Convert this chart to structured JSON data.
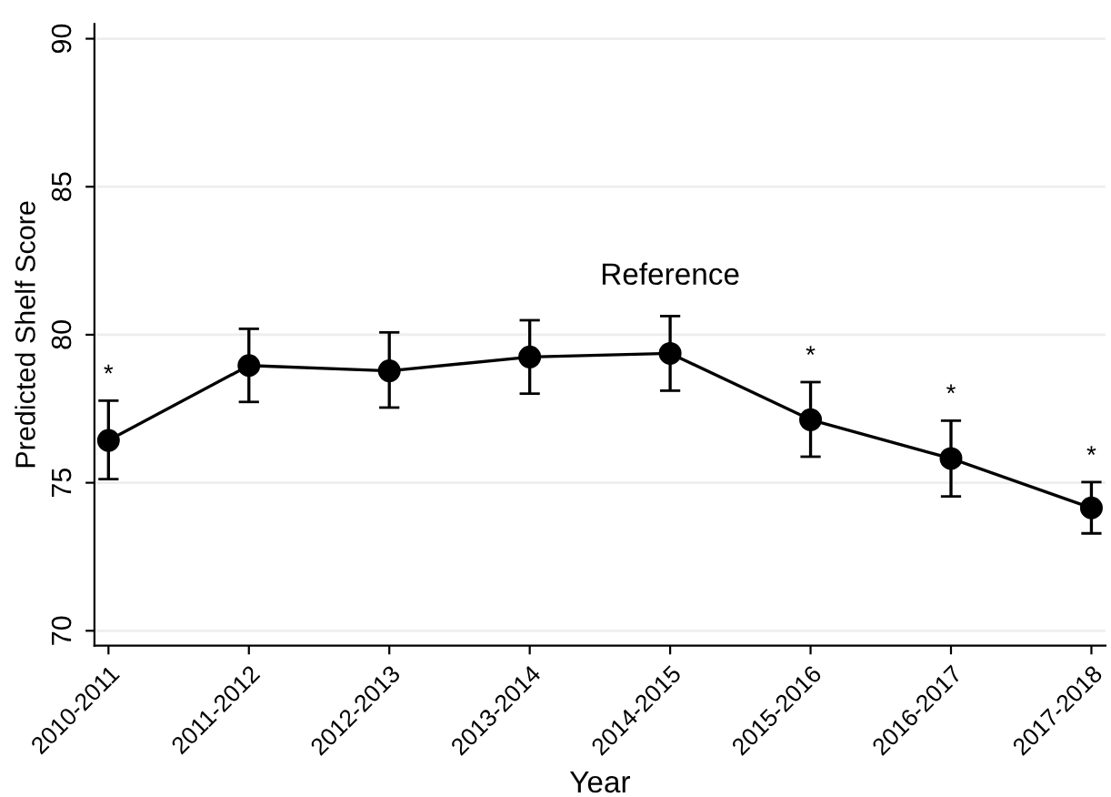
{
  "chart_data": {
    "type": "line",
    "xlabel": "Year",
    "ylabel": "Predicted Shelf Score",
    "categories": [
      "2010-2011",
      "2011-2012",
      "2012-2013",
      "2013-2014",
      "2014-2015",
      "2015-2016",
      "2016-2017",
      "2017-2018"
    ],
    "series": [
      {
        "color": "#000000",
        "values": [
          76.43,
          78.96,
          78.78,
          79.25,
          79.37,
          77.13,
          75.82,
          74.15
        ],
        "errors": [
          [
            75.12,
            77.77
          ],
          [
            77.73,
            80.2
          ],
          [
            77.54,
            80.08
          ],
          [
            78.01,
            80.49
          ],
          [
            78.11,
            80.63
          ],
          [
            75.88,
            78.4
          ],
          [
            74.54,
            77.1
          ],
          [
            73.29,
            75.02
          ]
        ],
        "value_labels": [
          "*",
          null,
          null,
          null,
          "Reference",
          "*",
          "*",
          "*"
        ]
      }
    ],
    "ylim": [
      69.5,
      90.5
    ],
    "yticks": [
      70,
      75,
      80,
      85,
      90
    ],
    "grid": "y",
    "marker": "circle",
    "line_style": "solid"
  }
}
